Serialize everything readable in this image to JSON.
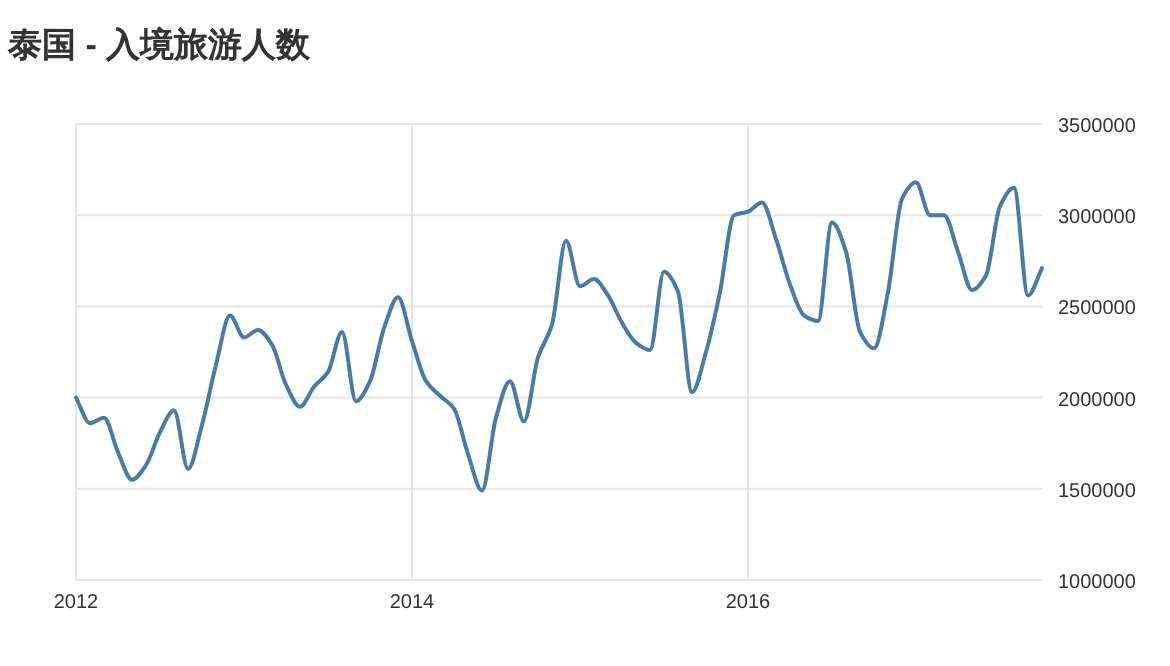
{
  "chart_data": {
    "type": "line",
    "title": "泰国 - 入境旅游人数",
    "x": [
      "2012-01",
      "2012-02",
      "2012-03",
      "2012-04",
      "2012-05",
      "2012-06",
      "2012-07",
      "2012-08",
      "2012-09",
      "2012-10",
      "2012-11",
      "2012-12",
      "2013-01",
      "2013-02",
      "2013-03",
      "2013-04",
      "2013-05",
      "2013-06",
      "2013-07",
      "2013-08",
      "2013-09",
      "2013-10",
      "2013-11",
      "2013-12",
      "2014-01",
      "2014-02",
      "2014-03",
      "2014-04",
      "2014-05",
      "2014-06",
      "2014-07",
      "2014-08",
      "2014-09",
      "2014-10",
      "2014-11",
      "2014-12",
      "2015-01",
      "2015-02",
      "2015-03",
      "2015-04",
      "2015-05",
      "2015-06",
      "2015-07",
      "2015-08",
      "2015-09",
      "2015-10",
      "2015-11",
      "2015-12",
      "2016-01",
      "2016-02",
      "2016-03",
      "2016-04",
      "2016-05",
      "2016-06",
      "2016-07",
      "2016-08",
      "2016-09",
      "2016-10",
      "2016-11",
      "2016-12",
      "2017-01",
      "2017-02",
      "2017-03",
      "2017-04",
      "2017-05",
      "2017-06",
      "2017-07",
      "2017-08",
      "2017-09",
      "2017-10"
    ],
    "series": [
      {
        "color": "#4a7ba6",
        "values": [
          2000000,
          1860000,
          1890000,
          1700000,
          1550000,
          1630000,
          1810000,
          1930000,
          1610000,
          1850000,
          2180000,
          2450000,
          2330000,
          2370000,
          2290000,
          2070000,
          1950000,
          2060000,
          2140000,
          2360000,
          1980000,
          2090000,
          2380000,
          2550000,
          2310000,
          2090000,
          2010000,
          1940000,
          1690000,
          1490000,
          1890000,
          2090000,
          1870000,
          2220000,
          2400000,
          2860000,
          2610000,
          2650000,
          2560000,
          2410000,
          2300000,
          2260000,
          2690000,
          2580000,
          2030000,
          2250000,
          2580000,
          3000000,
          3020000,
          3070000,
          2870000,
          2620000,
          2450000,
          2420000,
          2960000,
          2800000,
          2360000,
          2270000,
          2580000,
          3090000,
          3180000,
          3000000,
          3000000,
          2800000,
          2590000,
          2670000,
          3050000,
          3150000,
          2560000,
          2710000
        ]
      }
    ],
    "xlim": [
      "2012-01",
      "2017-10"
    ],
    "xticks": [
      {
        "value": "2012-01",
        "label": "2012"
      },
      {
        "value": "2014-01",
        "label": "2014"
      },
      {
        "value": "2016-01",
        "label": "2016"
      }
    ],
    "ylim": [
      1000000,
      3500000
    ],
    "yticks": [
      1000000,
      1500000,
      2000000,
      2500000,
      3000000,
      3500000
    ],
    "grid": true,
    "marker": "none",
    "line_style": "solid"
  }
}
